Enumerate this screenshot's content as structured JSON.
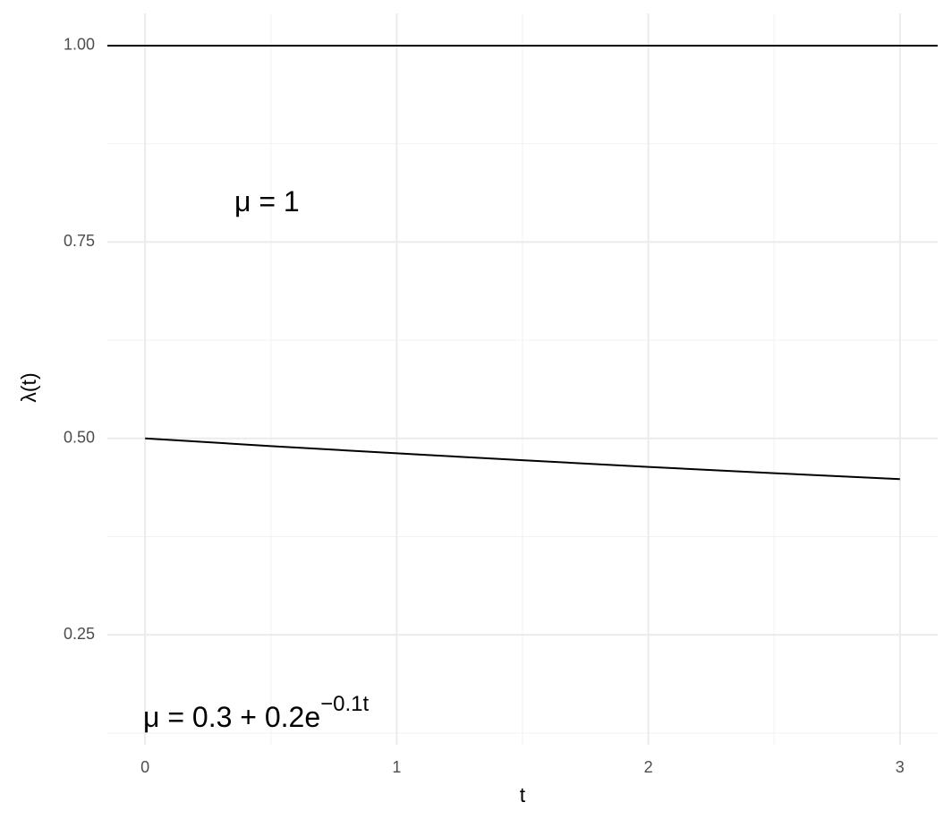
{
  "chart_data": {
    "type": "line",
    "x_label": "t",
    "y_label": "λ(t)",
    "x": [
      0,
      0.5,
      1,
      1.5,
      2,
      2.5,
      3
    ],
    "series": [
      {
        "color": "#000000",
        "values": [
          0.5,
          0.4902,
          0.481,
          0.4722,
          0.4637,
          0.4557,
          0.4482
        ]
      }
    ],
    "hlines": [
      1
    ],
    "annotations": [
      {
        "text": "μ = 1"
      },
      {
        "text": "μ = 0.3 + 0.2e",
        "superscript": "−0.1t"
      }
    ],
    "xlim": [
      -0.15,
      3.15
    ],
    "ylim": [
      0.11,
      1.041
    ],
    "xticks": [
      0,
      1,
      2,
      3
    ],
    "yticks": [
      {
        "value": 0.25,
        "label": "0.25"
      },
      {
        "value": 0.5,
        "label": "0.50"
      },
      {
        "value": 0.75,
        "label": "0.75"
      },
      {
        "value": 1,
        "label": "1.00"
      }
    ],
    "minor_xticks": [
      0.5,
      1.5,
      2.5
    ],
    "minor_yticks": [
      0.125,
      0.375,
      0.625,
      0.875
    ],
    "grid": true
  }
}
